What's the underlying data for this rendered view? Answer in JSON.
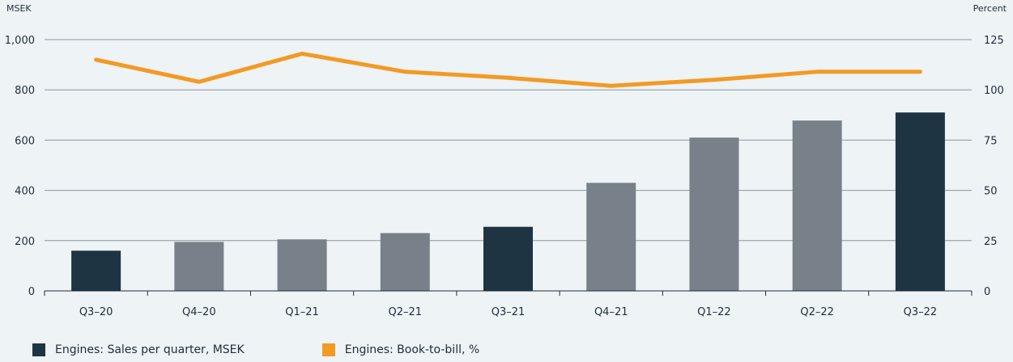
{
  "chart_data": {
    "type": "bar",
    "categories": [
      "Q3–20",
      "Q4–20",
      "Q1–21",
      "Q2–21",
      "Q3–21",
      "Q4–21",
      "Q1–22",
      "Q2–22",
      "Q3–22"
    ],
    "series": [
      {
        "name": "Engines: Sales per quarter, MSEK",
        "type": "bar",
        "axis": "left",
        "values": [
          160,
          195,
          205,
          230,
          255,
          430,
          610,
          678,
          710
        ],
        "highlighted_categories": [
          "Q3–20",
          "Q3–21",
          "Q3–22"
        ]
      },
      {
        "name": "Engines: Book-to-bill, %",
        "type": "line",
        "axis": "right",
        "values": [
          115,
          104,
          118,
          109,
          106,
          102,
          105,
          109,
          109
        ]
      }
    ],
    "left_axis": {
      "unit": "MSEK",
      "ticks": [
        "0",
        "200",
        "400",
        "600",
        "800",
        "1,000"
      ],
      "range": [
        0,
        1000
      ]
    },
    "right_axis": {
      "unit": "Percent",
      "ticks": [
        "0",
        "25",
        "50",
        "75",
        "100",
        "125"
      ],
      "range": [
        0,
        125
      ]
    },
    "grid": true,
    "legend_position": "bottom-left"
  },
  "colors": {
    "highlight_bar": "#1e3442",
    "regular_bar": "#78818a",
    "line": "#f39a24",
    "grid": "#8c969d"
  }
}
